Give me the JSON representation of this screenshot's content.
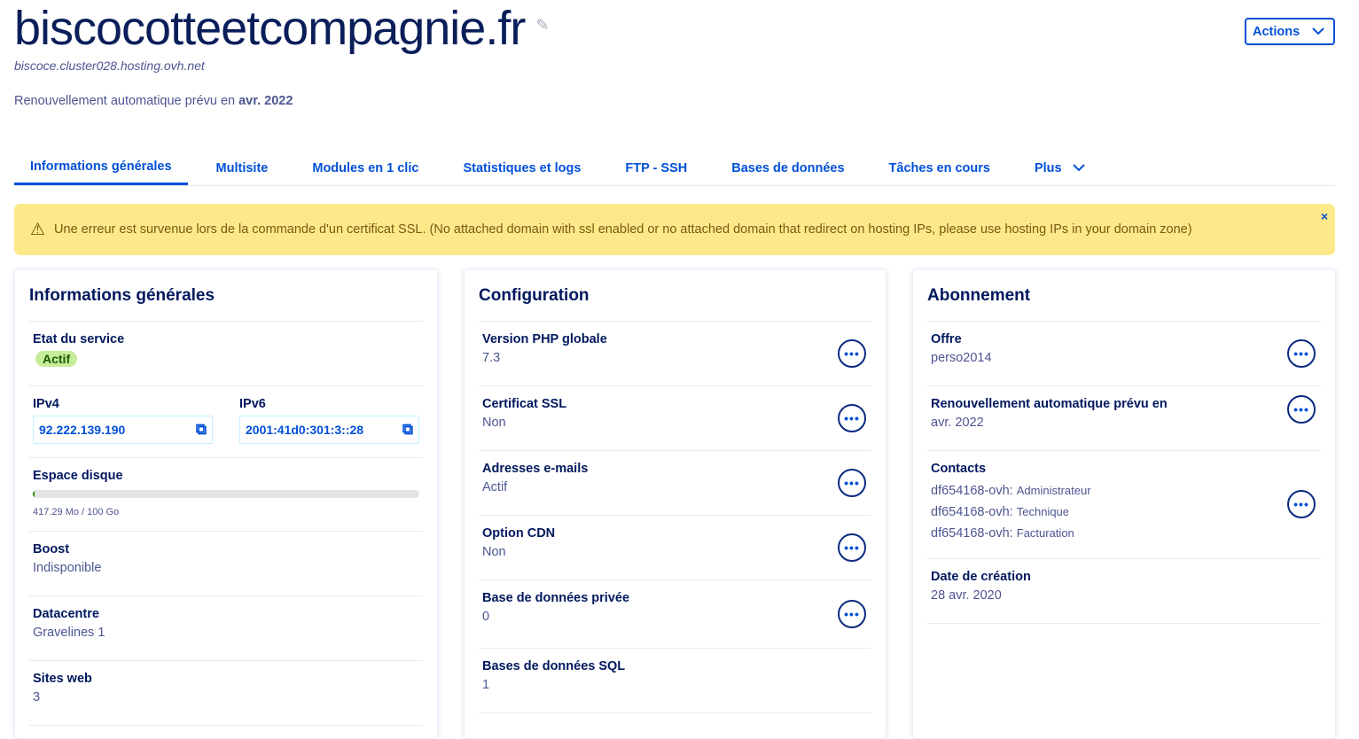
{
  "header": {
    "title": "biscocotteetcompagnie.fr",
    "hostname": "biscoce.cluster028.hosting.ovh.net",
    "renewal_text": "Renouvellement automatique prévu en",
    "renewal_date": "avr. 2022",
    "actions_label": "Actions"
  },
  "tabs": [
    {
      "label": "Informations générales",
      "active": true
    },
    {
      "label": "Multisite"
    },
    {
      "label": "Modules en 1 clic"
    },
    {
      "label": "Statistiques et logs"
    },
    {
      "label": "FTP - SSH"
    },
    {
      "label": "Bases de données"
    },
    {
      "label": "Tâches en cours"
    },
    {
      "label": "Plus"
    }
  ],
  "alert": {
    "message": "Une erreur est survenue lors de la commande d'un certificat SSL. (No attached domain with ssl enabled or no attached domain that redirect on hosting IPs, please use hosting IPs in your domain zone)",
    "close": "×"
  },
  "general": {
    "title": "Informations générales",
    "service_state_label": "Etat du service",
    "service_state": "Actif",
    "ipv4_label": "IPv4",
    "ipv4": "92.222.139.190",
    "ipv6_label": "IPv6",
    "ipv6": "2001:41d0:301:3::28",
    "disk_label": "Espace disque",
    "disk_used_fraction": 0.004,
    "disk_text": "417.29 Mo / 100 Go",
    "boost_label": "Boost",
    "boost": "Indisponible",
    "datacenter_label": "Datacentre",
    "datacenter": "Gravelines 1",
    "sites_label": "Sites web",
    "sites": "3"
  },
  "config": {
    "title": "Configuration",
    "rows": [
      {
        "label": "Version PHP globale",
        "value": "7.3"
      },
      {
        "label": "Certificat SSL",
        "value": "Non"
      },
      {
        "label": "Adresses e-mails",
        "value": "Actif"
      },
      {
        "label": "Option CDN",
        "value": "Non"
      },
      {
        "label": "Base de données privée",
        "value": "0"
      },
      {
        "label": "Bases de données SQL",
        "value": "1"
      }
    ]
  },
  "subscription": {
    "title": "Abonnement",
    "offer_label": "Offre",
    "offer": "perso2014",
    "renew_label": "Renouvellement automatique prévu en",
    "renew": "avr. 2022",
    "contacts_label": "Contacts",
    "contacts": [
      {
        "id": "df654168-ovh:",
        "role": "Administrateur"
      },
      {
        "id": "df654168-ovh:",
        "role": "Technique"
      },
      {
        "id": "df654168-ovh:",
        "role": "Facturation"
      }
    ],
    "creation_label": "Date de création",
    "creation": "28 avr. 2020"
  },
  "colors": {
    "accent": "#0050d7",
    "alert_bg": "#fde98a",
    "active_badge": "#c7ec9a",
    "disk_fill": "#2a8a00"
  }
}
